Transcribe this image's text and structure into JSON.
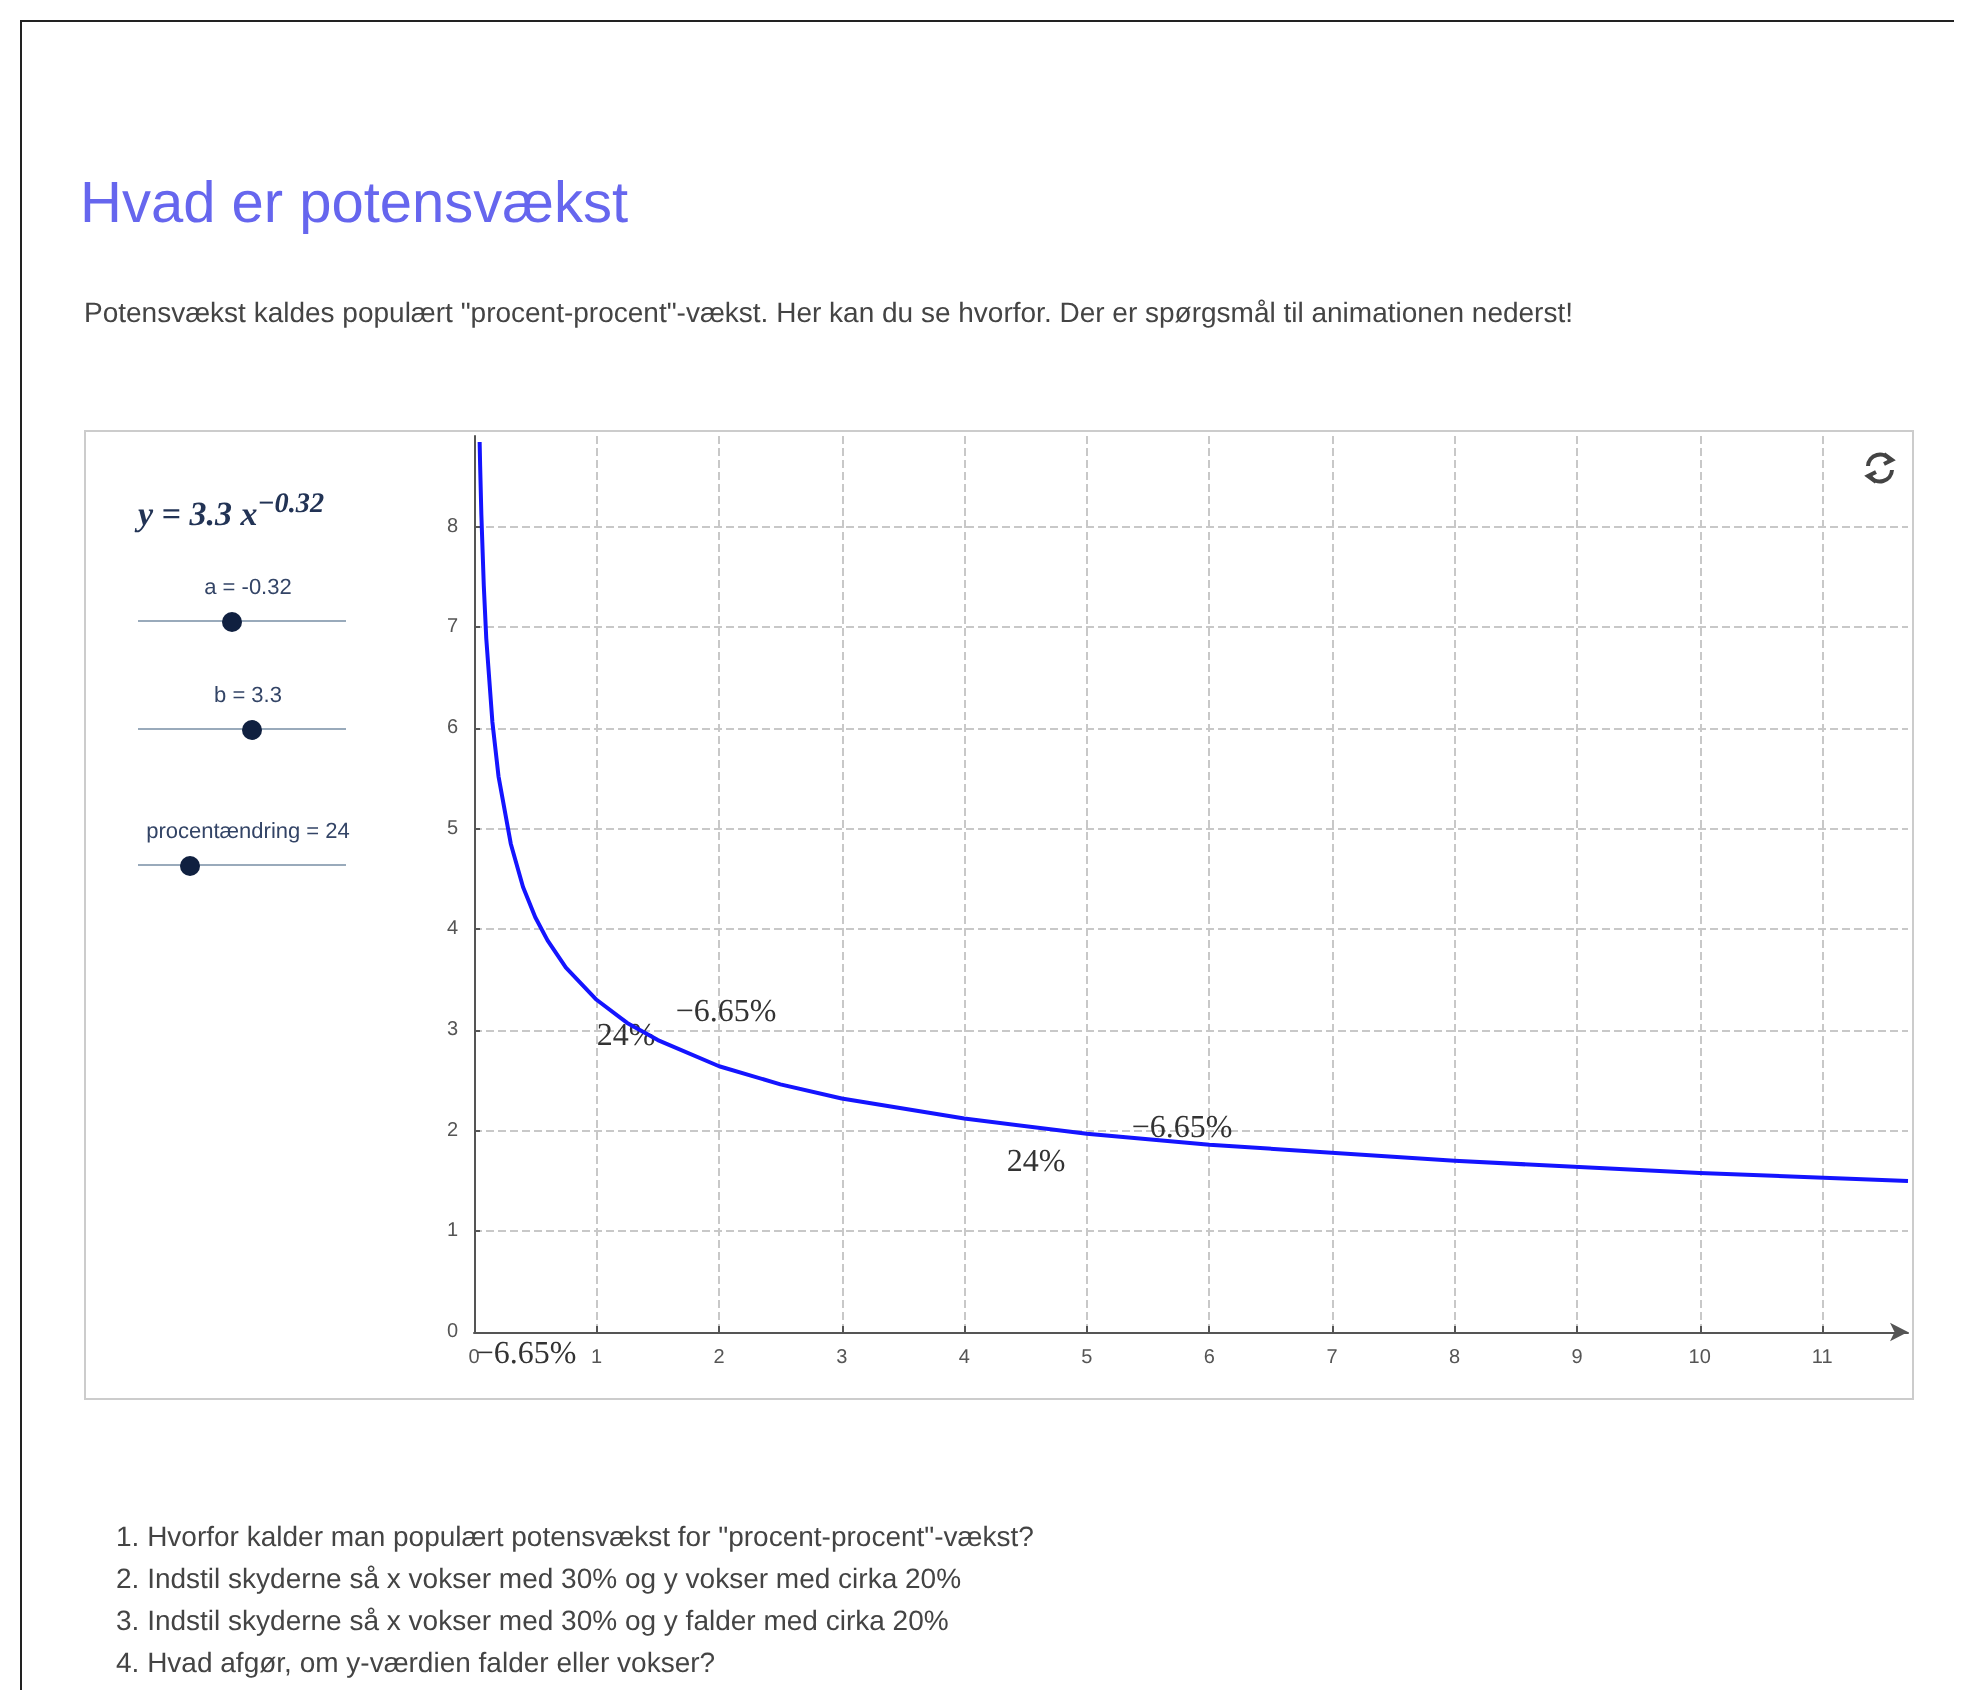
{
  "chart_data": {
    "type": "line",
    "title": "Hvad er potensvækst",
    "subtitle": "Potensvækst kaldes populært \"procent-procent\"-vækst. Her kan du se hvorfor. Der er spørgsmål til animationen nederst!",
    "x": [
      0.046,
      0.05,
      0.06,
      0.08,
      0.1,
      0.15,
      0.2,
      0.3,
      0.4,
      0.5,
      0.6,
      0.75,
      1,
      1.25,
      1.5,
      2,
      2.5,
      3,
      4,
      5,
      6,
      8,
      10,
      11.7
    ],
    "series": [
      {
        "color": "#1414ff",
        "values": [
          8.84,
          8.61,
          8.12,
          7.41,
          6.89,
          6.06,
          5.52,
          4.85,
          4.42,
          4.12,
          3.89,
          3.62,
          3.3,
          3.07,
          2.9,
          2.64,
          2.46,
          2.32,
          2.12,
          1.97,
          1.86,
          1.7,
          1.58,
          1.5
        ]
      }
    ],
    "xlim": [
      0,
      11.7
    ],
    "ylim": [
      0,
      8.9
    ],
    "xticks": [
      0,
      1,
      2,
      3,
      4,
      5,
      6,
      7,
      8,
      9,
      10,
      11
    ],
    "yticks": [
      0,
      1,
      2,
      3,
      4,
      5,
      6,
      7,
      8
    ],
    "grid": true,
    "marker": "none",
    "line_style": "solid",
    "annotations": [
      "y = 3.3 x$^{−0.32}$",
      "a = -0.32",
      "b = 3.3",
      "procentændring = 24",
      "24%",
      "−6.65%",
      "24%",
      "−6.65%",
      "−6.65%",
      "1. Hvorfor kalder man populært potensvækst for \"procent-procent\"-vækst?",
      "2.  Indstil skyderne så x vokser med 30% og y vokser med cirka 20%",
      "3.  Indstil skyderne så x vokser med 30% og y falder med cirka 20%",
      "4.  Hvad afgør, om y-værdien falder eller vokser?"
    ]
  }
}
